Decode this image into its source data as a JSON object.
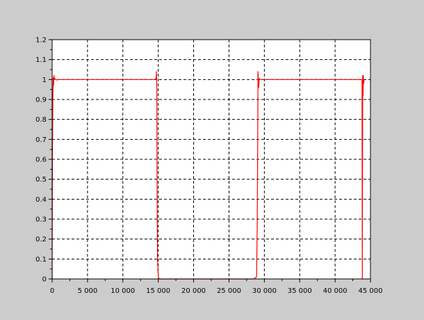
{
  "chart_data": {
    "type": "line",
    "title": "",
    "xlabel": "",
    "ylabel": "",
    "xlim": [
      0,
      45000
    ],
    "ylim": [
      0,
      1.2
    ],
    "grid": true,
    "x_ticks": [
      {
        "value": 0,
        "label": "0"
      },
      {
        "value": 5000,
        "label": "5 000"
      },
      {
        "value": 10000,
        "label": "10 000"
      },
      {
        "value": 15000,
        "label": "15 000"
      },
      {
        "value": 20000,
        "label": "20 000"
      },
      {
        "value": 25000,
        "label": "25 000"
      },
      {
        "value": 30000,
        "label": "30 000"
      },
      {
        "value": 35000,
        "label": "35 000"
      },
      {
        "value": 40000,
        "label": "40 000"
      },
      {
        "value": 45000,
        "label": "45 000"
      }
    ],
    "y_ticks": [
      {
        "value": 0,
        "label": "0"
      },
      {
        "value": 0.1,
        "label": "0.1"
      },
      {
        "value": 0.2,
        "label": "0.2"
      },
      {
        "value": 0.3,
        "label": "0.3"
      },
      {
        "value": 0.4,
        "label": "0.4"
      },
      {
        "value": 0.5,
        "label": "0.5"
      },
      {
        "value": 0.6,
        "label": "0.6"
      },
      {
        "value": 0.7,
        "label": "0.7"
      },
      {
        "value": 0.8,
        "label": "0.8"
      },
      {
        "value": 0.9,
        "label": "0.9"
      },
      {
        "value": 1,
        "label": "1"
      },
      {
        "value": 1.1,
        "label": "1.1"
      },
      {
        "value": 1.2,
        "label": "1.2"
      }
    ],
    "series": [
      {
        "color": "#ff0000",
        "x": [
          0,
          50,
          100,
          150,
          200,
          260,
          300,
          400,
          600,
          1000,
          3000,
          6000,
          9000,
          12000,
          14500,
          14700,
          14750,
          14800,
          14830,
          14860,
          14900,
          15000,
          15100,
          15200,
          15400,
          16000,
          20000,
          25000,
          28500,
          28900,
          29000,
          29060,
          29100,
          29150,
          29200,
          29260,
          29300,
          29400,
          29600,
          30000,
          35000,
          40000,
          43500,
          43800,
          43850,
          43900,
          43950,
          44000,
          44050,
          44100
        ],
        "y": [
          0,
          0.65,
          0.9,
          1.01,
          0.97,
          1.02,
          1.0,
          1.005,
          0.998,
          1.0,
          1.0,
          1.0,
          1.0,
          1.0,
          1.0,
          1.005,
          1.04,
          0.95,
          0.5,
          0.3,
          0.1,
          0.01,
          0.003,
          0.0,
          0.0,
          0.0,
          0.0,
          0.0,
          0.0,
          0.01,
          0.3,
          0.7,
          1.04,
          1.0,
          0.96,
          1.0,
          1.005,
          1.0,
          1.0,
          1.0,
          1.0,
          1.0,
          1.0,
          1.0,
          0.0,
          1.02,
          0.92,
          1.02,
          0.98,
          1.0
        ]
      }
    ]
  }
}
